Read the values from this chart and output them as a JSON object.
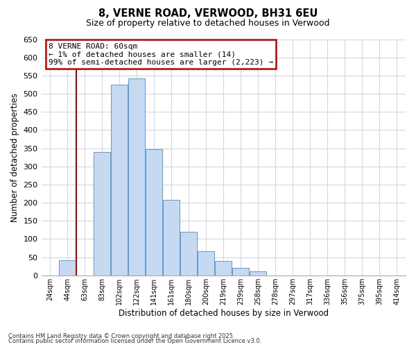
{
  "title": "8, VERNE ROAD, VERWOOD, BH31 6EU",
  "subtitle": "Size of property relative to detached houses in Verwood",
  "xlabel": "Distribution of detached houses by size in Verwood",
  "ylabel": "Number of detached properties",
  "bar_color": "#c6d9f0",
  "bar_edge_color": "#5b9bd5",
  "bin_labels": [
    "24sqm",
    "44sqm",
    "63sqm",
    "83sqm",
    "102sqm",
    "122sqm",
    "141sqm",
    "161sqm",
    "180sqm",
    "200sqm",
    "219sqm",
    "239sqm",
    "258sqm",
    "278sqm",
    "297sqm",
    "317sqm",
    "336sqm",
    "356sqm",
    "375sqm",
    "395sqm",
    "414sqm"
  ],
  "bar_heights": [
    0,
    42,
    0,
    340,
    525,
    543,
    347,
    208,
    120,
    67,
    40,
    20,
    11,
    0,
    0,
    0,
    0,
    0,
    0,
    0,
    0
  ],
  "ylim": [
    0,
    650
  ],
  "yticks": [
    0,
    50,
    100,
    150,
    200,
    250,
    300,
    350,
    400,
    450,
    500,
    550,
    600,
    650
  ],
  "vline_x_index": 2.0,
  "vline_color": "#c00000",
  "annotation_title": "8 VERNE ROAD: 60sqm",
  "annotation_line1": "← 1% of detached houses are smaller (14)",
  "annotation_line2": "99% of semi-detached houses are larger (2,223) →",
  "annotation_box_color": "#c00000",
  "footnote1": "Contains HM Land Registry data © Crown copyright and database right 2025.",
  "footnote2": "Contains public sector information licensed under the Open Government Licence v3.0.",
  "background_color": "#ffffff",
  "grid_color": "#d0d8e8"
}
